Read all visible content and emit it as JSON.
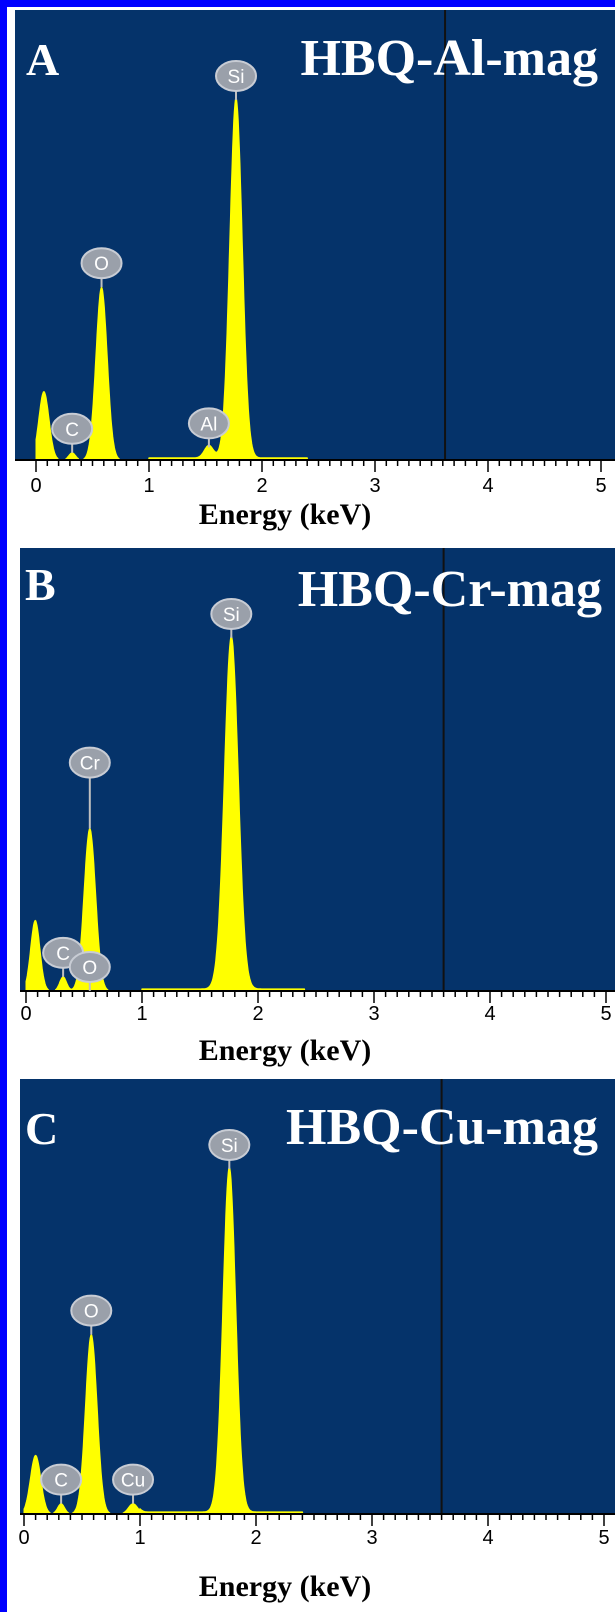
{
  "chart_data": [
    {
      "type": "area",
      "panel_label": "A",
      "title": "HBQ-Al-mag",
      "xlabel": "Energy (keV)",
      "ylabel": "",
      "xlim": [
        0,
        5
      ],
      "xticks": [
        "0",
        "1",
        "2",
        "3",
        "4",
        "5"
      ],
      "series_color": "#ffff00",
      "background_color": "#05336a",
      "marker_keV": 3.62,
      "peaks": [
        {
          "label": "",
          "x": 0.07,
          "y": 0.19,
          "w": 0.045
        },
        {
          "label": "C",
          "x": 0.32,
          "y": 0.02,
          "w": 0.03
        },
        {
          "label": "O",
          "x": 0.58,
          "y": 0.48,
          "w": 0.05
        },
        {
          "label": "Al",
          "x": 1.53,
          "y": 0.035,
          "w": 0.04
        },
        {
          "label": "Si",
          "x": 1.77,
          "y": 1.0,
          "w": 0.055
        }
      ]
    },
    {
      "type": "area",
      "panel_label": "B",
      "title": "HBQ-Cr-mag",
      "xlabel": "Energy (keV)",
      "ylabel": "",
      "xlim": [
        0,
        5
      ],
      "xticks": [
        "0",
        "1",
        "2",
        "3",
        "4",
        "5"
      ],
      "series_color": "#ffff00",
      "background_color": "#05336a",
      "marker_keV": 3.6,
      "peaks": [
        {
          "label": "",
          "x": 0.08,
          "y": 0.2,
          "w": 0.04
        },
        {
          "label": "C",
          "x": 0.32,
          "y": 0.04,
          "w": 0.03
        },
        {
          "label": "O",
          "x": 0.55,
          "y": 0.0,
          "w": 0.0
        },
        {
          "label": "Cr",
          "x": 0.55,
          "y": 0.46,
          "w": 0.05
        },
        {
          "label": "Si",
          "x": 1.77,
          "y": 1.0,
          "w": 0.06
        }
      ]
    },
    {
      "type": "area",
      "panel_label": "C",
      "title": "HBQ-Cu-mag",
      "xlabel": "Energy (keV)",
      "ylabel": "",
      "xlim": [
        0,
        5
      ],
      "xticks": [
        "0",
        "1",
        "2",
        "3",
        "4",
        "5"
      ],
      "series_color": "#ffff00",
      "background_color": "#05336a",
      "marker_keV": 3.6,
      "peaks": [
        {
          "label": "",
          "x": 0.1,
          "y": 0.17,
          "w": 0.045
        },
        {
          "label": "C",
          "x": 0.32,
          "y": 0.03,
          "w": 0.03
        },
        {
          "label": "O",
          "x": 0.58,
          "y": 0.52,
          "w": 0.05
        },
        {
          "label": "Cu",
          "x": 0.94,
          "y": 0.03,
          "w": 0.04
        },
        {
          "label": "Si",
          "x": 1.77,
          "y": 1.0,
          "w": 0.055
        }
      ]
    }
  ]
}
